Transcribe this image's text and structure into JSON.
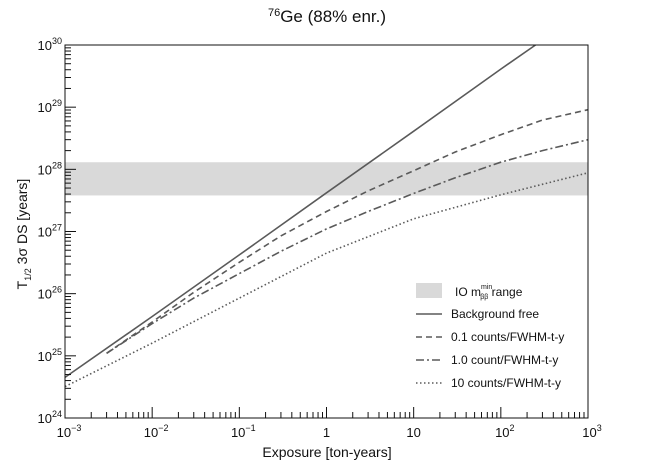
{
  "chart_data": {
    "type": "line",
    "title": {
      "sup": "76",
      "main": "Ge (88% enr.)"
    },
    "xlabel": "Exposure [ton-years]",
    "ylabel": {
      "pre": "T",
      "sub": "1/2",
      "post": " 3σ DS [years]"
    },
    "x_scale": "log",
    "y_scale": "log",
    "xlim": [
      0.001,
      1000
    ],
    "ylim": [
      1e+24,
      1e+30
    ],
    "x_ticks": [
      {
        "value": 0.001,
        "base": "10",
        "exp": "−3"
      },
      {
        "value": 0.01,
        "base": "10",
        "exp": "−2"
      },
      {
        "value": 0.1,
        "base": "10",
        "exp": "−1"
      },
      {
        "value": 1,
        "base": "1",
        "exp": ""
      },
      {
        "value": 10,
        "base": "10",
        "exp": ""
      },
      {
        "value": 100,
        "base": "10",
        "exp": "2"
      },
      {
        "value": 1000,
        "base": "10",
        "exp": "3"
      }
    ],
    "y_ticks": [
      {
        "value": 1e+24,
        "base": "10",
        "exp": "24"
      },
      {
        "value": 1e+25,
        "base": "10",
        "exp": "25"
      },
      {
        "value": 1e+26,
        "base": "10",
        "exp": "26"
      },
      {
        "value": 1e+27,
        "base": "10",
        "exp": "27"
      },
      {
        "value": 1e+28,
        "base": "10",
        "exp": "28"
      },
      {
        "value": 1e+29,
        "base": "10",
        "exp": "29"
      },
      {
        "value": 1e+30,
        "base": "10",
        "exp": "30"
      }
    ],
    "band": {
      "y_range": [
        3.8e+27,
        1.3e+28
      ],
      "label_pre": "IO m",
      "label_sub": "ββ",
      "label_sup": "min",
      "label_post": " range",
      "color": "#d9d9d9"
    },
    "series": [
      {
        "name": "Background free",
        "style": "solid",
        "color": "#5a5a5a",
        "x": [
          0.001,
          0.01,
          0.1,
          1,
          10,
          100,
          250
        ],
        "y": [
          4.5e+24,
          4.3e+25,
          4.2e+26,
          4.2e+27,
          4.1e+28,
          4.1e+29,
          1e+30
        ]
      },
      {
        "name": "0.1 counts/FWHM-t-y",
        "style": "dashed",
        "color": "#5a5a5a",
        "x": [
          0.003,
          0.01,
          0.03,
          0.1,
          0.3,
          1,
          3,
          10,
          30,
          100,
          300,
          1000
        ],
        "y": [
          1.1e+25,
          3.5e+25,
          1.05e+26,
          3.2e+26,
          8.5e+26,
          2.1e+27,
          4.5e+27,
          9.5e+27,
          1.9e+28,
          3.6e+28,
          6.2e+28,
          9.1e+28
        ]
      },
      {
        "name": "1.0 count/FWHM-t-y",
        "style": "dashdot",
        "color": "#5a5a5a",
        "x": [
          0.003,
          0.01,
          0.03,
          0.1,
          0.3,
          1,
          3,
          10,
          30,
          100,
          300,
          1000
        ],
        "y": [
          1.1e+25,
          3.3e+25,
          8.5e+25,
          2.1e+26,
          4.8e+26,
          1.1e+27,
          2.1e+27,
          4.1e+27,
          7.3e+27,
          1.3e+28,
          2e+28,
          3e+28
        ]
      },
      {
        "name": "10 counts/FWHM-t-y",
        "style": "dotted",
        "color": "#5a5a5a",
        "x": [
          0.001,
          0.01,
          0.1,
          1,
          10,
          100,
          1000
        ],
        "y": [
          3.2e+24,
          1.6e+25,
          8.5e+25,
          4.5e+26,
          1.6e+27,
          3.9e+27,
          8.8e+27
        ]
      }
    ],
    "legend_position": "bottom-right"
  }
}
